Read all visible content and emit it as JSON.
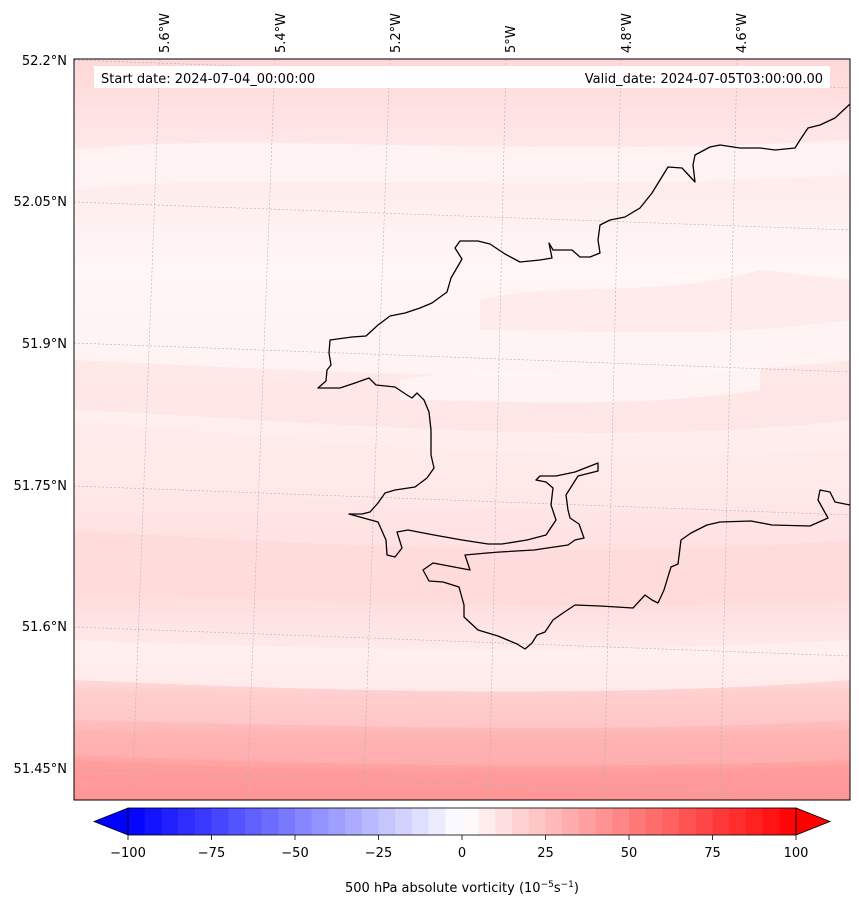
{
  "header": {
    "start_date": "Start date: 2024-07-04_00:00:00",
    "valid_date": "Valid_date: 2024-07-05T03:00:00.00"
  },
  "map": {
    "lon_labels": [
      "5.6°W",
      "5.4°W",
      "5.2°W",
      "5°W",
      "4.8°W",
      "4.6°W"
    ],
    "lat_labels": [
      "52.2°N",
      "52.05°N",
      "51.9°N",
      "51.75°N",
      "51.6°N",
      "51.45°N"
    ],
    "coastline_color": "#000000",
    "gridline_color": "#b0b0b0"
  },
  "colorbar": {
    "tick_labels": [
      "−100",
      "−75",
      "−50",
      "−25",
      "0",
      "25",
      "50",
      "75",
      "100"
    ],
    "label_main": "500 hPa absolute vorticity (10",
    "label_exp1": "−5",
    "label_mid": "s",
    "label_exp2": "−1",
    "label_end": ")",
    "min_color": "#0000ff",
    "mid_color": "#ffffff",
    "max_color": "#ff0000"
  }
}
